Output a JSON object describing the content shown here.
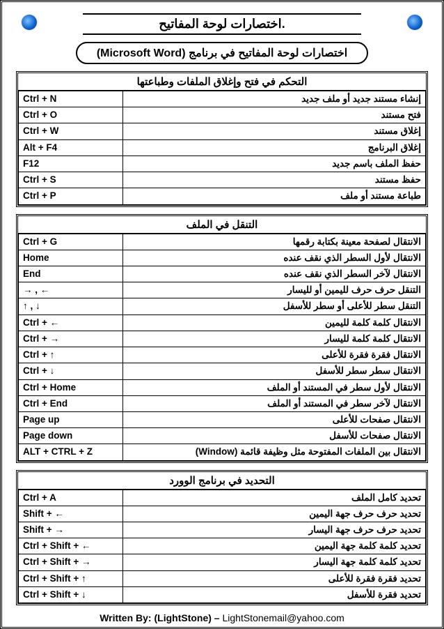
{
  "main_title": "اختصارات لوحة المفاتيح.",
  "subtitle_ar": "اختصارات لوحة المفاتيح في برنامج",
  "subtitle_en": "(Microsoft Word)",
  "sections": [
    {
      "header": "التحكم في فتح وإغلاق الملفات وطباعتها",
      "rows": [
        {
          "key": "Ctrl + N",
          "desc": "إنشاء مستند جديد أو ملف جديد"
        },
        {
          "key": "Ctrl + O",
          "desc": "فتح مستند"
        },
        {
          "key": "Ctrl + W",
          "desc": "إغلاق مستند"
        },
        {
          "key": "Alt + F4",
          "desc": "إغلاق البرنامج"
        },
        {
          "key": "F12",
          "desc": "حفظ الملف باسم جديد"
        },
        {
          "key": "Ctrl + S",
          "desc": "حفظ مستند"
        },
        {
          "key": "Ctrl + P",
          "desc": "طباعة مستند أو ملف"
        }
      ]
    },
    {
      "header": "التنقل في الملف",
      "rows": [
        {
          "key": "Ctrl + G",
          "desc": "الانتقال لصفحة معينة بكتابة رقمها"
        },
        {
          "key": "Home",
          "desc": "الانتقال لأول السطر الذي نقف عنده"
        },
        {
          "key": "End",
          "desc": "الانتقال لآخر السطر الذي نقف عنده"
        },
        {
          "key": "→ , ←",
          "desc": "التنقل حرف حرف لليمين أو لليسار"
        },
        {
          "key": "↑ , ↓",
          "desc": "التنقل سطر للأعلى أو سطر للأسفل"
        },
        {
          "key": "Ctrl + ←",
          "desc": "الانتقال كلمة كلمة لليمين"
        },
        {
          "key": "Ctrl + →",
          "desc": "الانتقال كلمة كلمة لليسار"
        },
        {
          "key": "Ctrl + ↑",
          "desc": "الانتقال فقرة فقرة للأعلى"
        },
        {
          "key": "Ctrl + ↓",
          "desc": "الانتقال سطر سطر للأسفل"
        },
        {
          "key": "Ctrl + Home",
          "desc": "الانتقال لأول سطر في المستند أو الملف"
        },
        {
          "key": "Ctrl + End",
          "desc": "الانتقال لآخر سطر في المستند أو الملف"
        },
        {
          "key": "Page up",
          "desc": "الانتقال صفحات للأعلى"
        },
        {
          "key": "Page down",
          "desc": "الانتقال صفحات للأسفل"
        },
        {
          "key": "ALT + CTRL + Z",
          "desc": "الانتقال بين الملفات المفتوحة مثل وظيفة قائمة (Window)"
        }
      ]
    },
    {
      "header": "التحديد في برنامج الوورد",
      "rows": [
        {
          "key": "Ctrl + A",
          "desc": "تحديد كامل الملف"
        },
        {
          "key": "Shift + ←",
          "desc": "تحديد حرف حرف جهة اليمين"
        },
        {
          "key": "Shift + →",
          "desc": "تحديد حرف حرف جهة اليسار"
        },
        {
          "key": "Ctrl + Shift + ←",
          "desc": "تحديد كلمة كلمة جهة اليمين"
        },
        {
          "key": "Ctrl + Shift + →",
          "desc": "تحديد كلمة كلمة جهة اليسار"
        },
        {
          "key": "Ctrl + Shift + ↑",
          "desc": "تحديد فقرة فقرة للأعلى"
        },
        {
          "key": "Ctrl + Shift + ↓",
          "desc": "تحديد فقرة للأسفل"
        }
      ]
    }
  ],
  "footer_written": "Written By: (LightStone) – ",
  "footer_email": "LightStonemail@yahoo.com"
}
